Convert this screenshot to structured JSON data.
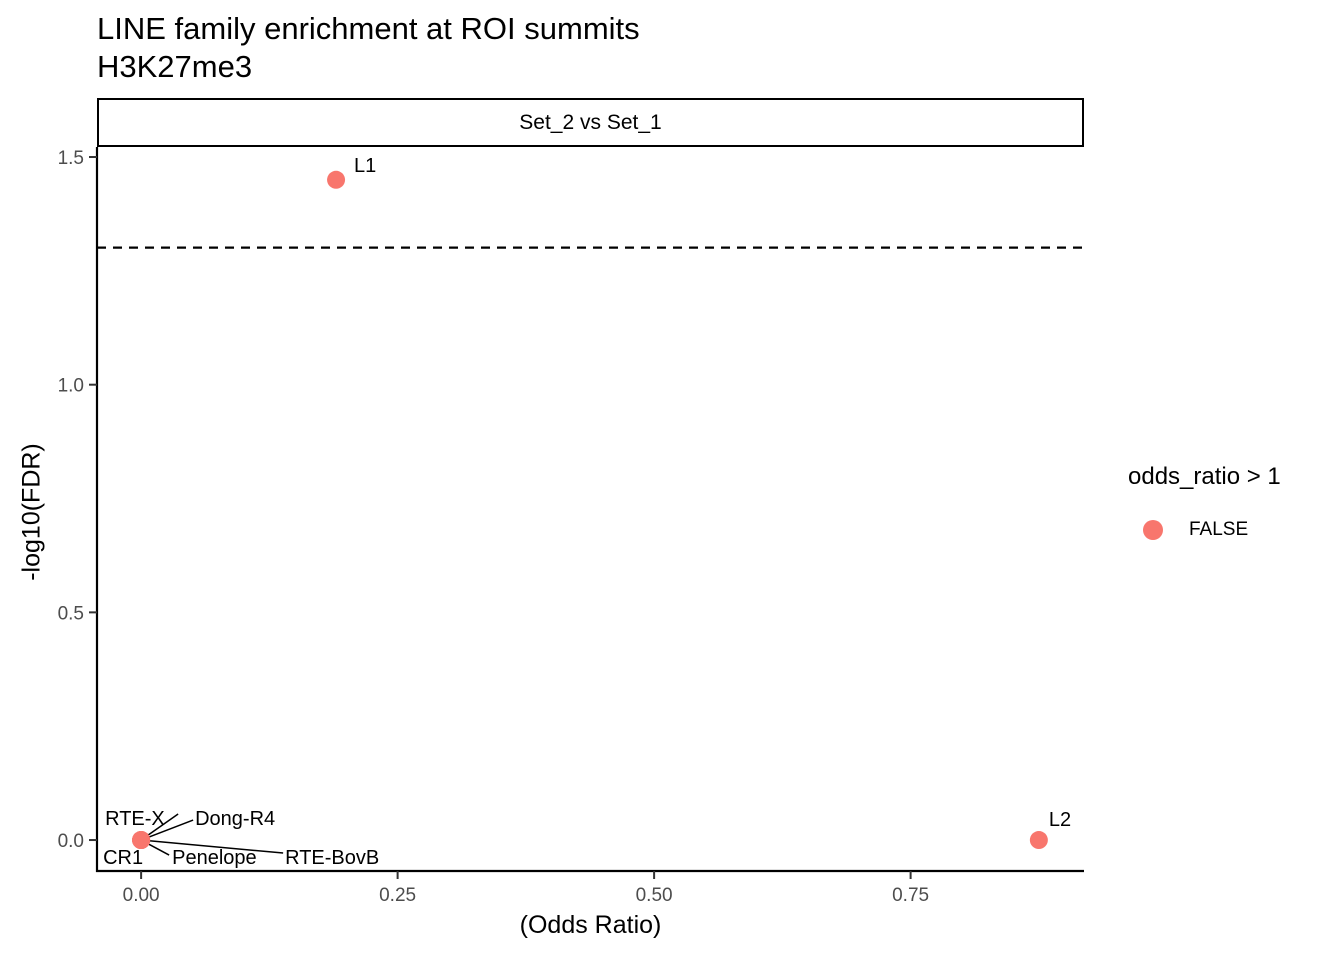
{
  "title": "LINE family enrichment at ROI summits",
  "subtitle": "H3K27me3",
  "facet": {
    "label": "Set_2 vs Set_1"
  },
  "axes": {
    "x_title": "(Odds Ratio)",
    "y_title": "-log10(FDR)"
  },
  "legend": {
    "title": "odds_ratio > 1",
    "items": [
      {
        "label": "FALSE",
        "color": "#F8766D"
      }
    ]
  },
  "chart_data": {
    "type": "scatter",
    "title": "LINE family enrichment at ROI summits",
    "subtitle": "H3K27me3",
    "facet_label": "Set_2 vs Set_1",
    "xlabel": "(Odds Ratio)",
    "ylabel": "-log10(FDR)",
    "xlim": [
      -0.043,
      0.919
    ],
    "ylim": [
      -0.068,
      1.522
    ],
    "grid": false,
    "legend_position": "right",
    "threshold_line": {
      "y": 1.301,
      "style": "dashed",
      "color": "#000000"
    },
    "x_ticks": [
      {
        "value": 0.0,
        "label": "0.00"
      },
      {
        "value": 0.25,
        "label": "0.25"
      },
      {
        "value": 0.5,
        "label": "0.50"
      },
      {
        "value": 0.75,
        "label": "0.75"
      }
    ],
    "y_ticks": [
      {
        "value": 0.0,
        "label": "0.0"
      },
      {
        "value": 0.5,
        "label": "0.5"
      },
      {
        "value": 1.0,
        "label": "1.0"
      },
      {
        "value": 1.5,
        "label": "1.5"
      }
    ],
    "series": [
      {
        "name": "FALSE",
        "color": "#F8766D",
        "points": [
          {
            "label": "L1",
            "x": 0.19,
            "y": 1.45,
            "label_dx": 18,
            "label_dy": -8,
            "segment": null
          },
          {
            "label": "L2",
            "x": 0.875,
            "y": 0.0,
            "label_dx": 10,
            "label_dy": -14,
            "segment": null
          },
          {
            "label": "RTE-X",
            "x": 0.0,
            "y": 0.0,
            "label_dx": -36,
            "label_dy": -15,
            "segment": {
              "dx": 37,
              "dy": -26
            }
          },
          {
            "label": "Dong-R4",
            "x": 0.0,
            "y": 0.0,
            "label_dx": 54,
            "label_dy": -15,
            "segment": {
              "dx": 52,
              "dy": -20
            }
          },
          {
            "label": "CR1",
            "x": 0.0,
            "y": 0.0,
            "label_dx": -38,
            "label_dy": 24,
            "segment": null
          },
          {
            "label": "Penelope",
            "x": 0.0,
            "y": 0.0,
            "label_dx": 31,
            "label_dy": 24,
            "segment": {
              "dx": 28,
              "dy": 15
            }
          },
          {
            "label": "RTE-BovB",
            "x": 0.0,
            "y": 0.0,
            "label_dx": 144,
            "label_dy": 24,
            "segment": {
              "dx": 142,
              "dy": 13
            }
          }
        ]
      }
    ]
  }
}
